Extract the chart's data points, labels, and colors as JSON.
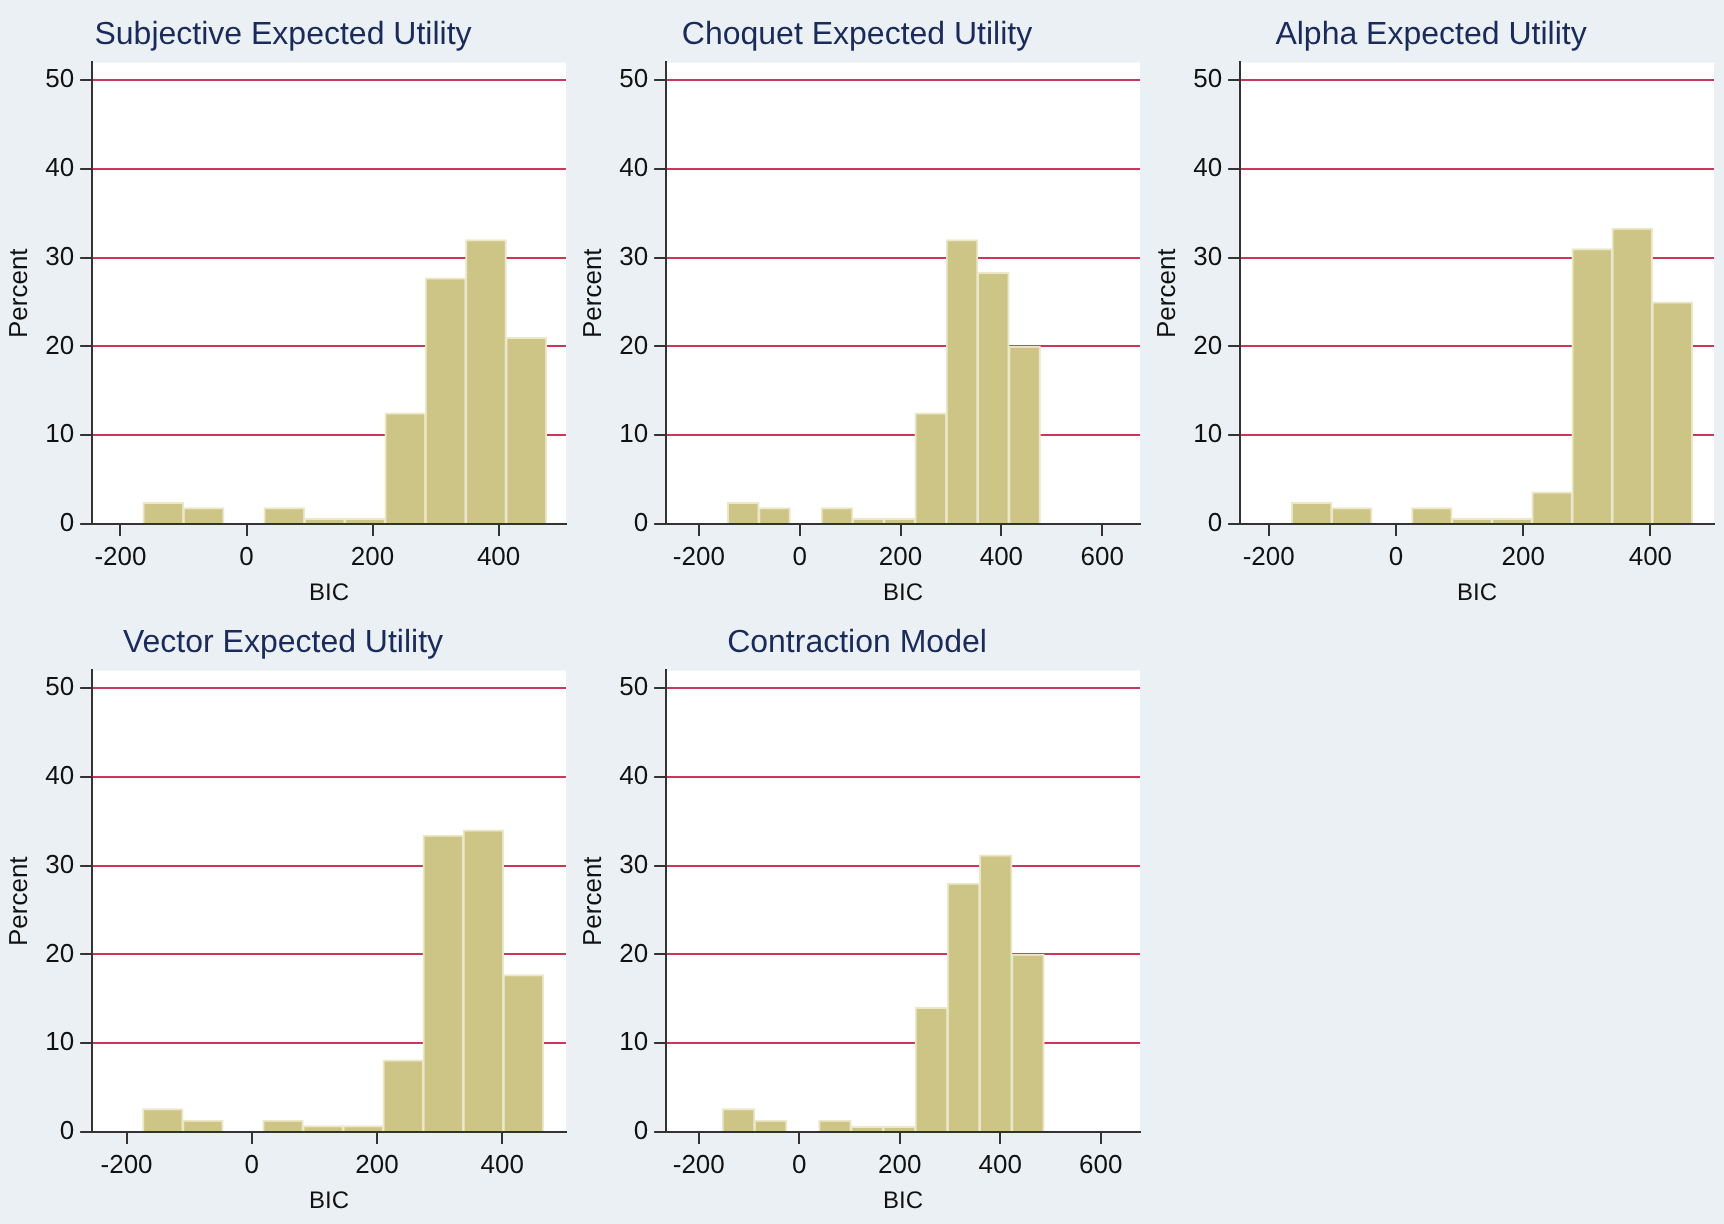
{
  "chart_data": [
    {
      "type": "histogram",
      "title": "Subjective Expected Utility",
      "xlabel": "BIC",
      "ylabel": "Percent",
      "color": "#cdc585",
      "bins": [
        -164,
        -100,
        -36,
        28,
        92,
        156,
        220,
        284,
        348,
        412,
        476
      ],
      "values": [
        2.4,
        1.8,
        0,
        1.8,
        0.6,
        0.6,
        12.5,
        27.7,
        32,
        21
      ],
      "xlim": [
        -245,
        507
      ],
      "xticks": [
        -200,
        0,
        200,
        400
      ],
      "ylim": [
        0,
        52
      ],
      "yticks": [
        0,
        10,
        20,
        30,
        40,
        50
      ],
      "grid": "y"
    },
    {
      "type": "histogram",
      "title": "Choquet Expected Utility",
      "xlabel": "BIC",
      "ylabel": "Percent",
      "color": "#cdc585",
      "bins": [
        -143,
        -81,
        -19,
        43,
        105,
        167,
        229,
        291,
        353,
        415,
        477
      ],
      "values": [
        2.4,
        1.8,
        0,
        1.8,
        0.6,
        0.6,
        12.5,
        32,
        28.3,
        20
      ],
      "xlim": [
        -265,
        675
      ],
      "xticks": [
        -200,
        0,
        200,
        400,
        600
      ],
      "ylim": [
        0,
        52
      ],
      "yticks": [
        0,
        10,
        20,
        30,
        40,
        50
      ],
      "grid": "y"
    },
    {
      "type": "histogram",
      "title": "Alpha Expected Utility",
      "xlabel": "BIC",
      "ylabel": "Percent",
      "color": "#cdc585",
      "bins": [
        -164,
        -101,
        -38,
        25,
        88,
        151,
        214,
        277,
        340,
        403,
        466
      ],
      "values": [
        2.4,
        1.8,
        0,
        1.8,
        0.6,
        0.6,
        3.6,
        31,
        33.3,
        25
      ],
      "xlim": [
        -245,
        500
      ],
      "xticks": [
        -200,
        0,
        200,
        400
      ],
      "ylim": [
        0,
        52
      ],
      "yticks": [
        0,
        10,
        20,
        30,
        40,
        50
      ],
      "grid": "y"
    },
    {
      "type": "histogram",
      "title": "Vector Expected Utility",
      "xlabel": "BIC",
      "ylabel": "Percent",
      "color": "#cdc585",
      "bins": [
        -174,
        -110,
        -46,
        18,
        82,
        146,
        210,
        274,
        338,
        402,
        466
      ],
      "values": [
        2.6,
        1.3,
        0,
        1.3,
        0.7,
        0.7,
        8.1,
        33.4,
        34,
        17.7
      ],
      "xlim": [
        -255,
        502
      ],
      "xticks": [
        -200,
        0,
        200,
        400
      ],
      "ylim": [
        0,
        52
      ],
      "yticks": [
        0,
        10,
        20,
        30,
        40,
        50
      ],
      "grid": "y"
    },
    {
      "type": "histogram",
      "title": "Contraction Model",
      "xlabel": "BIC",
      "ylabel": "Percent",
      "color": "#cdc585",
      "bins": [
        -153,
        -89,
        -25,
        39,
        103,
        167,
        231,
        295,
        359,
        423,
        487
      ],
      "values": [
        2.6,
        1.3,
        0,
        1.3,
        0.6,
        0.6,
        14,
        28,
        31.2,
        20
      ],
      "xlim": [
        -265,
        678
      ],
      "xticks": [
        -200,
        0,
        200,
        400,
        600
      ],
      "ylim": [
        0,
        52
      ],
      "yticks": [
        0,
        10,
        20,
        30,
        40,
        50
      ],
      "grid": "y"
    }
  ]
}
